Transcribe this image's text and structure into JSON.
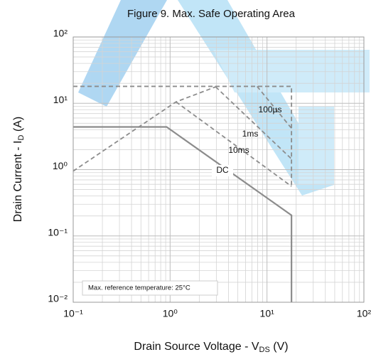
{
  "chart_data": {
    "type": "line",
    "title": "Figure 9. Max. Safe Operating Area",
    "xlabel": {
      "text": "Drain Source Voltage  -  V",
      "sub": "DS",
      "unit": " (V)"
    },
    "ylabel": {
      "text": "Drain Current - I",
      "sub": "D",
      "unit": " (A)"
    },
    "annotation": "Max. reference temperature: 25°C",
    "xscale": "log",
    "yscale": "log",
    "xlim": [
      0.1,
      100
    ],
    "ylim": [
      0.01,
      100
    ],
    "xticks": [
      {
        "value": 0.1,
        "label": "10⁻¹"
      },
      {
        "value": 1,
        "label": "10⁰"
      },
      {
        "value": 10,
        "label": "10¹"
      },
      {
        "value": 100,
        "label": "10²"
      }
    ],
    "yticks": [
      {
        "value": 0.01,
        "label": "10⁻²"
      },
      {
        "value": 0.1,
        "label": "10⁻¹"
      },
      {
        "value": 1,
        "label": "10⁰"
      },
      {
        "value": 10,
        "label": "10¹"
      },
      {
        "value": 100,
        "label": "10²"
      }
    ],
    "grid": true,
    "minor_grid": true,
    "series": [
      {
        "color": "#8c8c8c",
        "dashed": true,
        "x": [
          0.1,
          1.15,
          2.95
        ],
        "values": [
          0.95,
          10.5,
          17.7
        ]
      },
      {
        "color": "#8c8c8c",
        "dashed": true,
        "x": [
          0.1,
          17.9,
          17.9
        ],
        "values": [
          18,
          18,
          0.56
        ]
      },
      {
        "name": "100µs",
        "color": "#8c8c8c",
        "dashed": true,
        "x": [
          7.9,
          17.9
        ],
        "values": [
          18,
          4.2
        ]
      },
      {
        "name": "1ms",
        "color": "#8c8c8c",
        "dashed": true,
        "x": [
          2.95,
          17.9
        ],
        "values": [
          17.7,
          1.45
        ]
      },
      {
        "name": "10ms",
        "color": "#8c8c8c",
        "dashed": true,
        "x": [
          1.15,
          17.9
        ],
        "values": [
          10.5,
          0.56
        ]
      },
      {
        "name": "DC",
        "color": "#8c8c8c",
        "dashed": false,
        "x": [
          0.1,
          0.92,
          17.9,
          17.9
        ],
        "values": [
          4.4,
          4.4,
          0.205,
          0.01
        ]
      }
    ]
  }
}
